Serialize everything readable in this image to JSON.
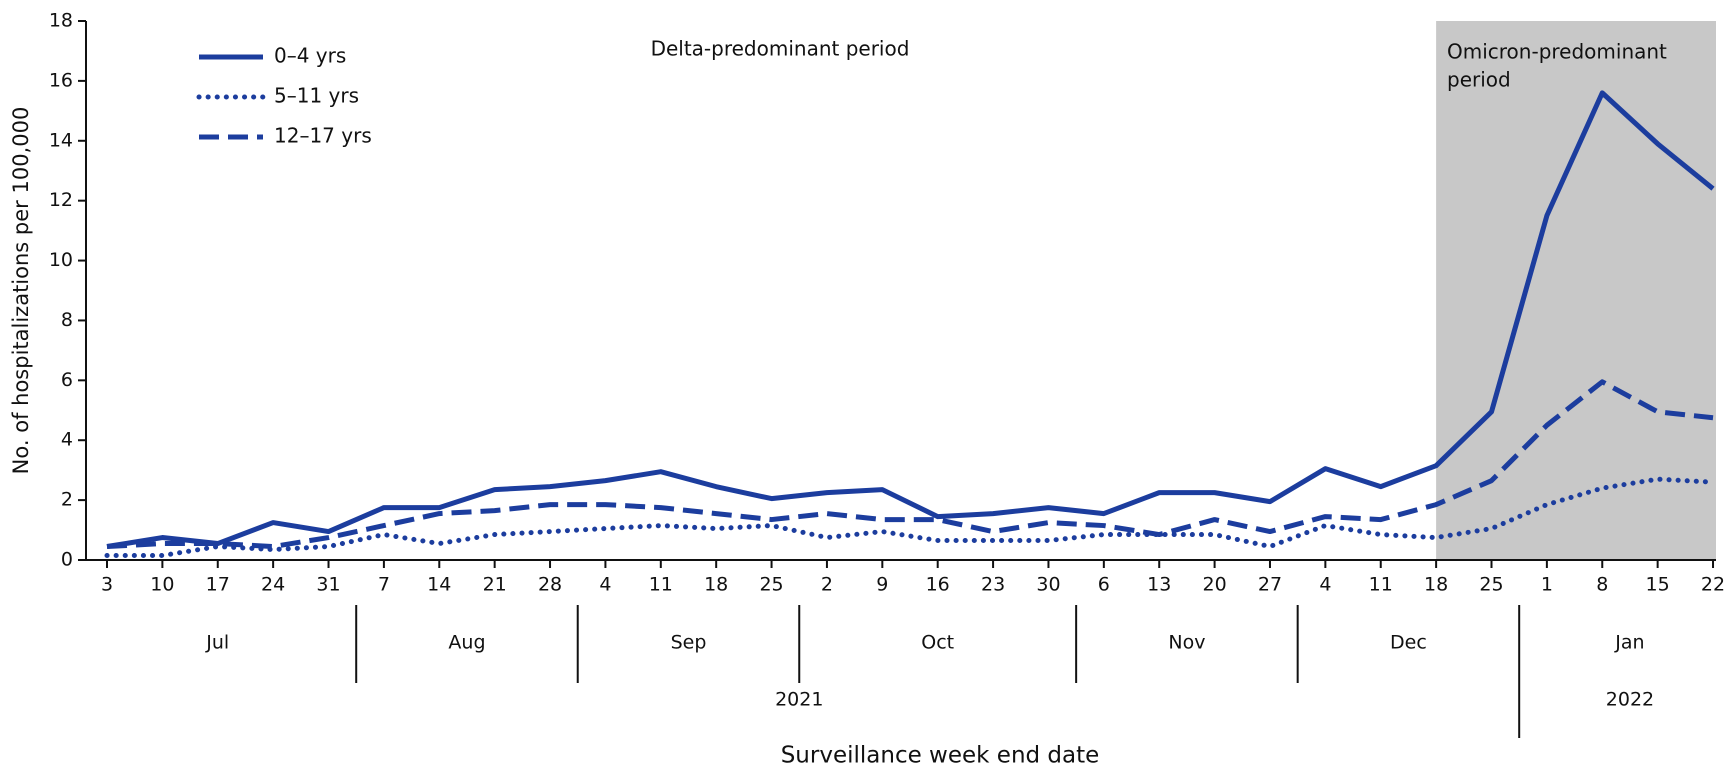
{
  "chart_data": {
    "type": "line",
    "y_label": "No. of hospitalizations per 100,000",
    "x_label": "Surveillance week end date",
    "annotations": [
      "Delta-predominant period",
      [
        "Omicron-predominant",
        "period"
      ]
    ],
    "years": [
      {
        "label": "2021",
        "months": [
          {
            "label": "Jul",
            "days": [
              "3",
              "10",
              "17",
              "24",
              "31"
            ]
          },
          {
            "label": "Aug",
            "days": [
              "7",
              "14",
              "21",
              "28"
            ]
          },
          {
            "label": "Sep",
            "days": [
              "4",
              "11",
              "18",
              "25"
            ]
          },
          {
            "label": "Oct",
            "days": [
              "2",
              "9",
              "16",
              "23",
              "30"
            ]
          },
          {
            "label": "Nov",
            "days": [
              "6",
              "13",
              "20",
              "27"
            ]
          },
          {
            "label": "Dec",
            "days": [
              "4",
              "11",
              "18",
              "25"
            ]
          }
        ]
      },
      {
        "label": "2022",
        "months": [
          {
            "label": "Jan",
            "days": [
              "1",
              "8",
              "15",
              "22"
            ]
          }
        ]
      }
    ],
    "series": [
      {
        "name": "0–4 yrs",
        "color": "#1c3d9e",
        "style": "solid",
        "values": [
          0.45,
          0.75,
          0.55,
          1.25,
          0.95,
          1.75,
          1.75,
          2.35,
          2.45,
          2.65,
          2.95,
          2.45,
          2.05,
          2.25,
          2.35,
          1.45,
          1.55,
          1.75,
          1.55,
          2.25,
          2.25,
          1.95,
          3.05,
          2.45,
          3.15,
          4.95,
          11.5,
          15.6,
          13.9,
          12.4
        ]
      },
      {
        "name": "5–11 yrs",
        "color": "#1c3d9e",
        "style": "dotted",
        "values": [
          0.15,
          0.15,
          0.45,
          0.35,
          0.45,
          0.85,
          0.55,
          0.85,
          0.95,
          1.05,
          1.15,
          1.05,
          1.15,
          0.75,
          0.95,
          0.65,
          0.65,
          0.65,
          0.85,
          0.85,
          0.85,
          0.45,
          1.15,
          0.85,
          0.75,
          1.05,
          1.85,
          2.4,
          2.7,
          2.6
        ]
      },
      {
        "name": "12–17 yrs",
        "color": "#1c3d9e",
        "style": "dashed",
        "values": [
          0.45,
          0.55,
          0.55,
          0.45,
          0.75,
          1.15,
          1.55,
          1.65,
          1.85,
          1.85,
          1.75,
          1.55,
          1.35,
          1.55,
          1.35,
          1.35,
          0.95,
          1.25,
          1.15,
          0.85,
          1.35,
          0.95,
          1.45,
          1.35,
          1.85,
          2.65,
          4.5,
          5.95,
          4.95,
          4.75
        ]
      }
    ],
    "ylim": [
      0,
      18
    ],
    "yticks": [
      0,
      2,
      4,
      6,
      8,
      10,
      12,
      14,
      16,
      18
    ],
    "grid": false
  }
}
